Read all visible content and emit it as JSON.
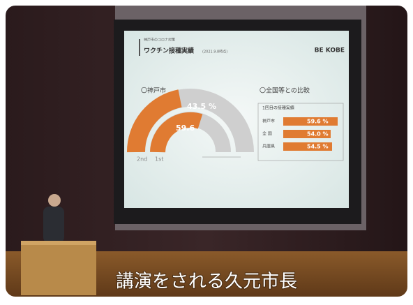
{
  "slide": {
    "header": {
      "kicker": "神戸市のコロナ対策",
      "title": "ワクチン接種実績",
      "date": "(2021.9.8時点)",
      "brand": "BE KOBE"
    },
    "left_panel": {
      "heading": "〇神戸市",
      "outer_value": "43.5 %",
      "inner_value": "59.6",
      "outer_label": "2nd",
      "inner_label": "1st"
    },
    "right_panel": {
      "heading": "〇全国等との比較",
      "table_title": "1回目の接種実績",
      "rows": [
        [
          "神戸市",
          "59.6 %"
        ],
        [
          "全 国",
          "54.0 %"
        ],
        [
          "兵庫県",
          "54.5 %"
        ]
      ]
    }
  },
  "caption": "講演をされる久元市長"
}
